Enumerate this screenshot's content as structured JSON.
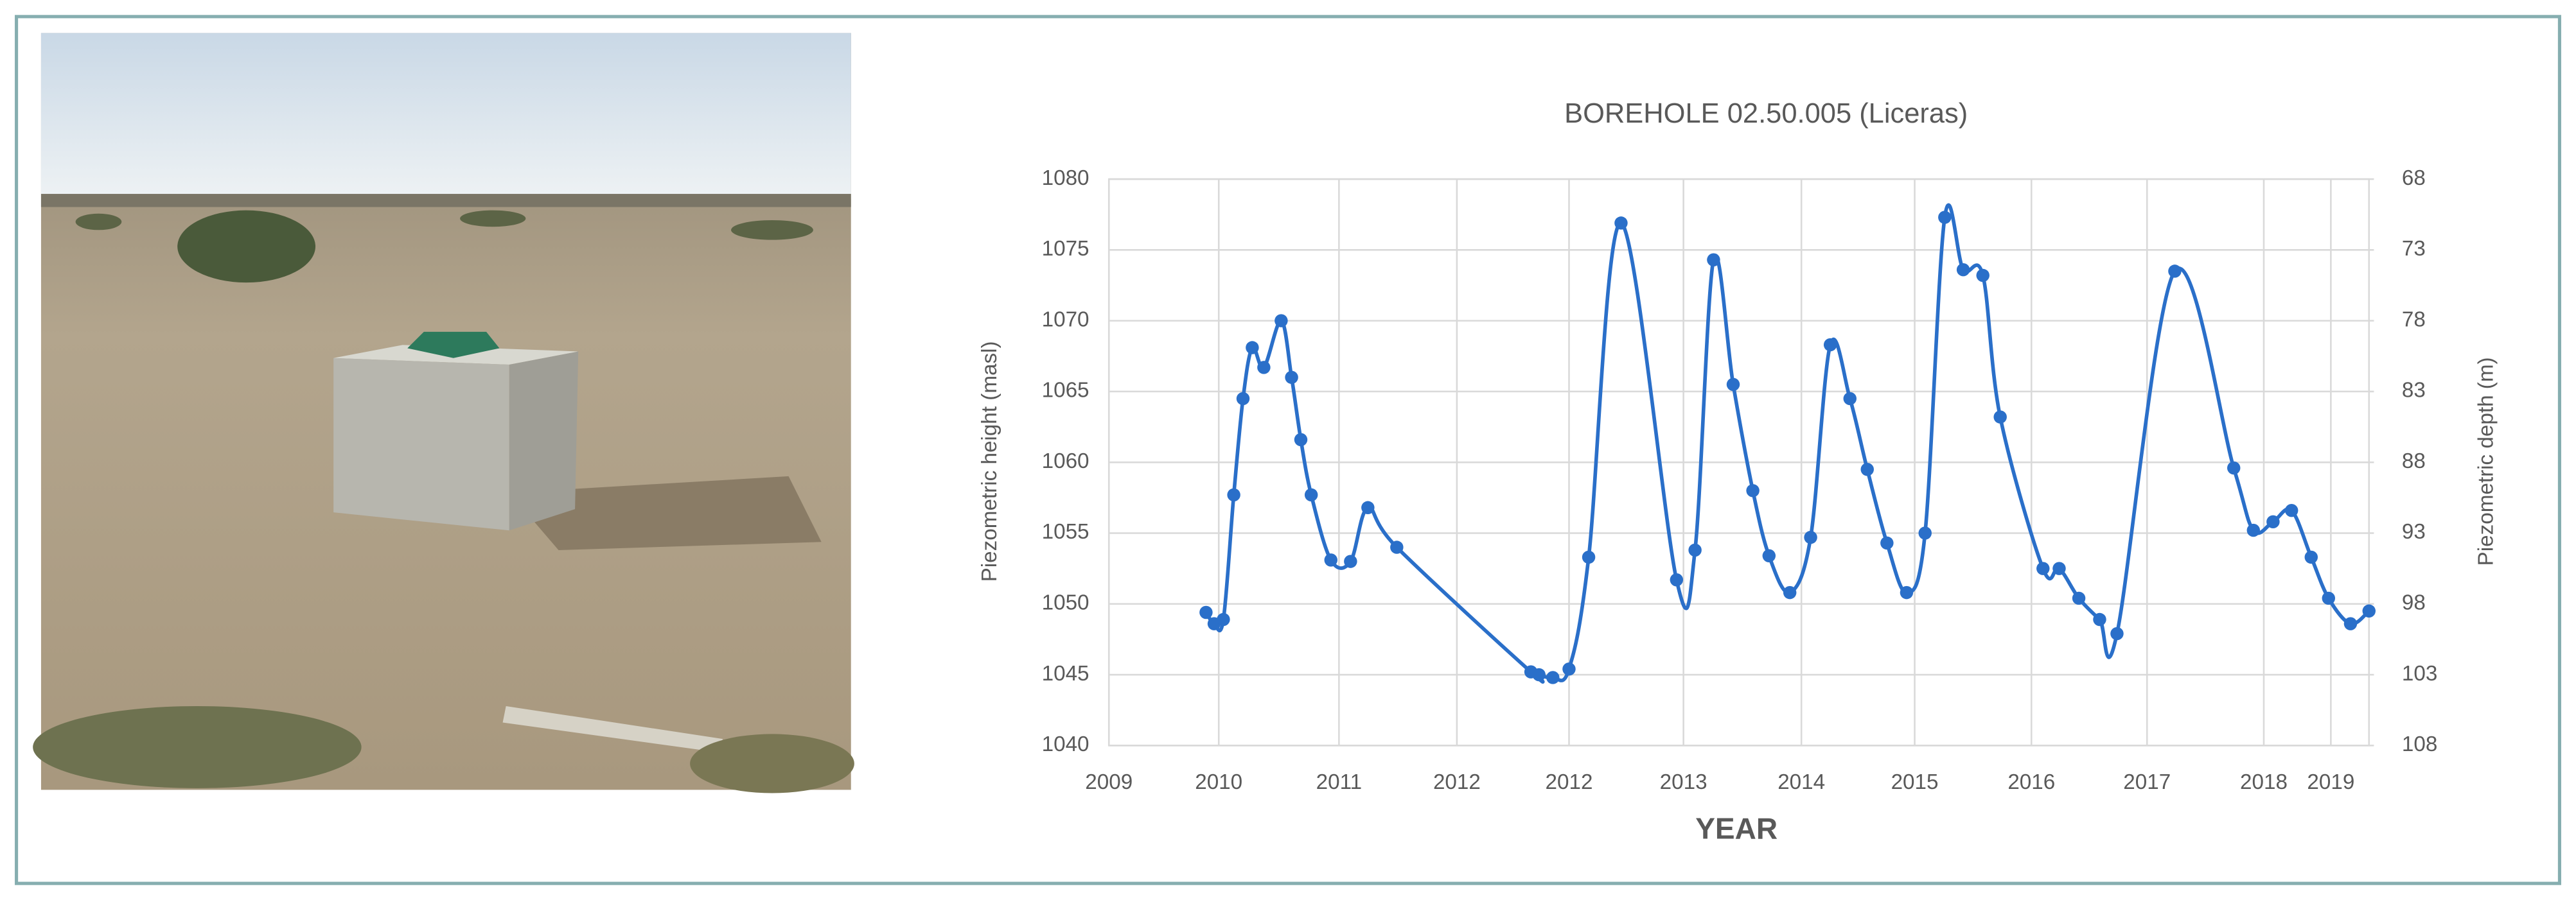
{
  "chart_data": {
    "type": "line",
    "title": "BOREHOLE 02.50.005 (Liceras)",
    "xlabel": "YEAR",
    "ylabel": "Piezometric height (masl)",
    "y2label": "Piezometric depth (m)",
    "x": [
      2009.84,
      2009.91,
      2009.99,
      2010.08,
      2010.16,
      2010.24,
      2010.34,
      2010.49,
      2010.58,
      2010.66,
      2010.75,
      2010.92,
      2011.09,
      2011.24,
      2011.49,
      2012.65,
      2012.72,
      2012.84,
      2012.98,
      2013.15,
      2013.43,
      2013.91,
      2014.07,
      2014.23,
      2014.4,
      2014.57,
      2014.71,
      2014.89,
      2015.07,
      2015.24,
      2015.41,
      2015.56,
      2015.73,
      2015.9,
      2016.06,
      2016.23,
      2016.39,
      2016.56,
      2016.71,
      2017.08,
      2017.22,
      2017.39,
      2017.57,
      2017.72,
      2018.22,
      2018.73,
      2018.9,
      2019.07,
      2019.23,
      2019.4,
      2019.55,
      2019.74,
      2019.9
    ],
    "series": [
      {
        "color": "#2a6fc9",
        "values": [
          1049.4,
          1048.6,
          1048.9,
          1057.7,
          1064.5,
          1068.1,
          1066.7,
          1070.0,
          1066.0,
          1061.6,
          1057.7,
          1053.1,
          1053.0,
          1056.8,
          1054.0,
          1045.2,
          1045.0,
          1044.8,
          1045.4,
          1053.3,
          1076.9,
          1051.7,
          1053.8,
          1074.3,
          1065.5,
          1058.0,
          1053.4,
          1050.8,
          1054.7,
          1068.3,
          1064.5,
          1059.5,
          1054.3,
          1050.8,
          1055.0,
          1077.3,
          1073.6,
          1073.2,
          1063.2,
          1052.5,
          1052.5,
          1050.4,
          1048.9,
          1047.9,
          1073.5,
          1059.6,
          1055.2,
          1055.8,
          1056.6,
          1053.3,
          1050.4,
          1048.6,
          1049.5
        ]
      }
    ],
    "xlim": [
      2009,
      2019.9
    ],
    "xticks": [
      {
        "value": 2009,
        "label": "2009"
      },
      {
        "value": 2009.95,
        "label": "2010"
      },
      {
        "value": 2010.99,
        "label": "2011"
      },
      {
        "value": 2012.01,
        "label": "2012"
      },
      {
        "value": 2012.98,
        "label": "2012"
      },
      {
        "value": 2013.97,
        "label": "2013"
      },
      {
        "value": 2014.99,
        "label": "2014"
      },
      {
        "value": 2015.97,
        "label": "2015"
      },
      {
        "value": 2016.98,
        "label": "2016"
      },
      {
        "value": 2017.98,
        "label": "2017"
      },
      {
        "value": 2018.99,
        "label": "2018"
      },
      {
        "value": 2019.57,
        "label": "2019"
      }
    ],
    "ylim": [
      1040,
      1080
    ],
    "yticks": [
      1040,
      1045,
      1050,
      1055,
      1060,
      1065,
      1070,
      1075,
      1080
    ],
    "y2lim": [
      108,
      68
    ],
    "y2ticks": [
      108,
      103,
      98,
      93,
      88,
      83,
      78,
      73,
      68
    ],
    "grid": true
  }
}
